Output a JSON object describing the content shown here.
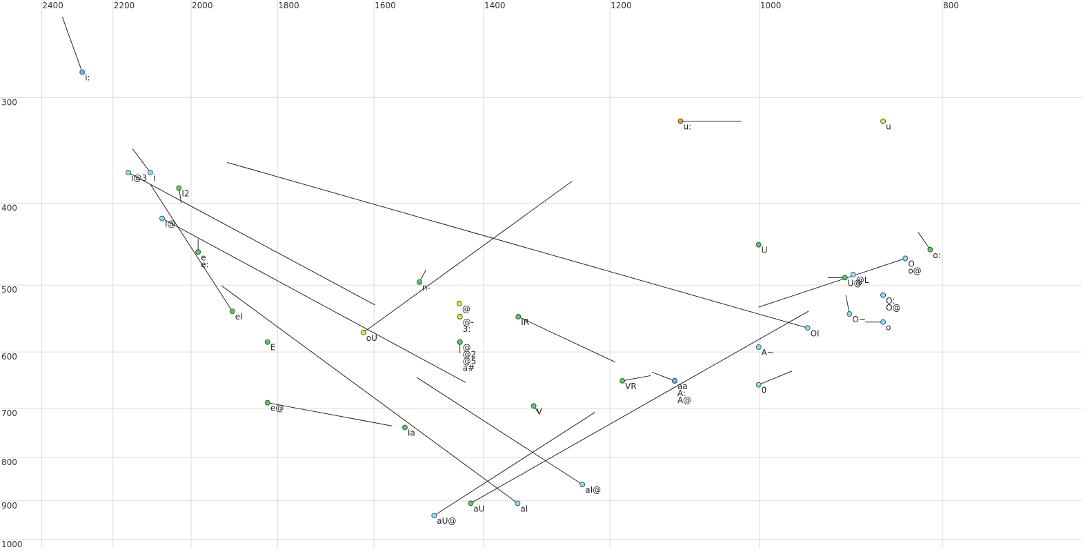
{
  "chart_data": {
    "type": "scatter",
    "x_scale": "log",
    "y_scale": "log",
    "grid": true,
    "xlim": [
      2525,
      675
    ],
    "ylim": [
      230,
      1025
    ],
    "xticks": [
      2400,
      2200,
      2000,
      1800,
      1600,
      1400,
      1200,
      1000,
      800
    ],
    "yticks": [
      300,
      400,
      500,
      600,
      700,
      800,
      900,
      1000
    ],
    "points": [
      {
        "label": "i:",
        "x": 2284,
        "y": 280,
        "color": "#7ab0f0",
        "end": {
          "x": 2340,
          "y": 241
        }
      },
      {
        "label": "i@3",
        "x": 2159,
        "y": 368,
        "color": "#7fe6ec",
        "end": {
          "x": 1598,
          "y": 528
        }
      },
      {
        "label": "i",
        "x": 2102,
        "y": 368,
        "color": "#7fe6ec",
        "end": {
          "x": 2148,
          "y": 345
        }
      },
      {
        "label": "I2",
        "x": 2030,
        "y": 384,
        "color": "#4cd44c",
        "end": {
          "x": 2024,
          "y": 400
        }
      },
      {
        "label": "I@",
        "x": 2072,
        "y": 417,
        "color": "#7fe6ec",
        "end": {
          "x": 1431,
          "y": 652
        }
      },
      {
        "label": "e",
        "x": 1983,
        "y": 457,
        "color": "#4cd44c",
        "end": {
          "x": 1983,
          "y": 441
        }
      },
      {
        "label": "e:",
        "x": 1983,
        "y": 457,
        "color": "#4cd44c"
      },
      {
        "label": "eI",
        "x": 1902,
        "y": 537,
        "color": "#4cd44c",
        "end": {
          "x": 2102,
          "y": 380
        }
      },
      {
        "label": "E",
        "x": 1822,
        "y": 584,
        "color": "#4cd44c"
      },
      {
        "label": "e@",
        "x": 1822,
        "y": 689,
        "color": "#4cd44c",
        "end": {
          "x": 1565,
          "y": 734
        }
      },
      {
        "label": "n-",
        "x": 1514,
        "y": 496,
        "color": "#4cd44c",
        "end": {
          "x": 1502,
          "y": 480
        }
      },
      {
        "label": "oU",
        "x": 1621,
        "y": 569,
        "color": "#e8e820",
        "end": {
          "x": 1257,
          "y": 377
        }
      },
      {
        "label": "@",
        "x": 1442,
        "y": 526,
        "color": "#e8e820"
      },
      {
        "label": "@-",
        "x": 1441,
        "y": 545,
        "color": "#e8e820"
      },
      {
        "label": "3:",
        "x": 1441,
        "y": 545,
        "color": "#e8e820"
      },
      {
        "label": "@",
        "x": 1441,
        "y": 584,
        "color": "#4cd44c",
        "end": {
          "x": 1441,
          "y": 602
        }
      },
      {
        "label": "@2",
        "x": 1441,
        "y": 584,
        "color": "#4cd44c"
      },
      {
        "label": "@5",
        "x": 1441,
        "y": 584,
        "color": "#4cd44c"
      },
      {
        "label": "a#",
        "x": 1441,
        "y": 584,
        "color": "#4cd44c"
      },
      {
        "label": "Ia",
        "x": 1541,
        "y": 737,
        "color": "#4cd44c"
      },
      {
        "label": "IR",
        "x": 1342,
        "y": 545,
        "color": "#4cd44c",
        "end": {
          "x": 1192,
          "y": 617
        }
      },
      {
        "label": "V",
        "x": 1317,
        "y": 695,
        "color": "#4cd44c",
        "end": {
          "x": 1308,
          "y": 710
        }
      },
      {
        "label": "VR",
        "x": 1182,
        "y": 649,
        "color": "#4cd44c",
        "end": {
          "x": 1142,
          "y": 640
        }
      },
      {
        "label": "aa",
        "x": 1109,
        "y": 649,
        "color": "#7ab0f0",
        "end": {
          "x": 1140,
          "y": 634
        }
      },
      {
        "label": "A:",
        "x": 1109,
        "y": 649,
        "color": "#7ab0f0"
      },
      {
        "label": "A@",
        "x": 1109,
        "y": 649,
        "color": "#7ab0f0"
      },
      {
        "label": "u:",
        "x": 1101,
        "y": 320,
        "color": "#e8a020",
        "end": {
          "x": 1022,
          "y": 320
        }
      },
      {
        "label": "u",
        "x": 860,
        "y": 320,
        "color": "#e8e820"
      },
      {
        "label": "U",
        "x": 1001,
        "y": 448,
        "color": "#4cd44c"
      },
      {
        "label": "A~",
        "x": 1001,
        "y": 592,
        "color": "#7fe6ec"
      },
      {
        "label": "0",
        "x": 1001,
        "y": 656,
        "color": "#7fe6ec",
        "end": {
          "x": 961,
          "y": 632
        }
      },
      {
        "label": "OI",
        "x": 943,
        "y": 562,
        "color": "#7fe6ec",
        "end": {
          "x": 1914,
          "y": 358
        }
      },
      {
        "label": "aU",
        "x": 1422,
        "y": 906,
        "color": "#4cd44c",
        "end": {
          "x": 942,
          "y": 537
        }
      },
      {
        "label": "aU@",
        "x": 1487,
        "y": 937,
        "color": "#7fe6ec",
        "end": {
          "x": 1222,
          "y": 707
        }
      },
      {
        "label": "aI@",
        "x": 1241,
        "y": 861,
        "color": "#7fe6ec",
        "end": {
          "x": 1519,
          "y": 643
        }
      },
      {
        "label": "aI",
        "x": 1343,
        "y": 906,
        "color": "#7fe6ec",
        "end": {
          "x": 1927,
          "y": 501
        }
      },
      {
        "label": "U@",
        "x": 901,
        "y": 490,
        "color": "#4cd44c",
        "end": {
          "x": 920,
          "y": 490
        }
      },
      {
        "label": "@L",
        "x": 892,
        "y": 486,
        "color": "#7fe6ec"
      },
      {
        "label": "O",
        "x": 837,
        "y": 465,
        "color": "#7fe6ec",
        "end": {
          "x": 1001,
          "y": 531
        }
      },
      {
        "label": "o@",
        "x": 837,
        "y": 465,
        "color": "#7fe6ec"
      },
      {
        "label": "o:",
        "x": 812,
        "y": 454,
        "color": "#4cd44c",
        "end": {
          "x": 824,
          "y": 433
        }
      },
      {
        "label": "O:",
        "x": 860,
        "y": 514,
        "color": "#7fe6ec"
      },
      {
        "label": "O@",
        "x": 860,
        "y": 514,
        "color": "#7fe6ec"
      },
      {
        "label": "O~",
        "x": 896,
        "y": 541,
        "color": "#7fe6ec",
        "end": {
          "x": 900,
          "y": 514
        }
      },
      {
        "label": "o",
        "x": 860,
        "y": 553,
        "color": "#7fe6ec",
        "end": {
          "x": 879,
          "y": 553
        }
      }
    ]
  }
}
